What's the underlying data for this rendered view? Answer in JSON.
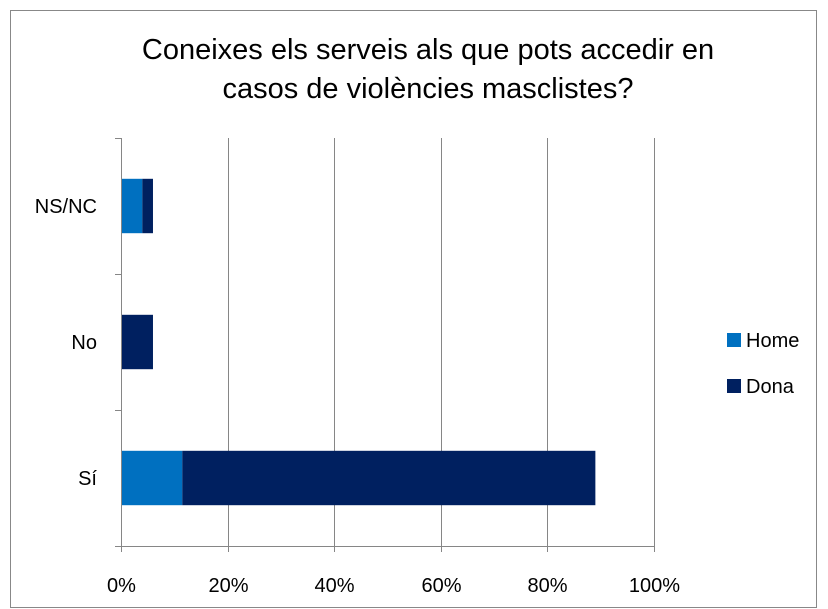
{
  "chart_data": {
    "type": "bar",
    "orientation": "horizontal",
    "stacked": true,
    "title_lines": [
      "Coneixes els serveis als que pots accedir en",
      "casos de violències masclistes?"
    ],
    "categories": [
      "NS/NC",
      "No",
      "Sí"
    ],
    "series": [
      {
        "name": "Home",
        "values": [
          4,
          0,
          11.5
        ],
        "color": "#0070C0"
      },
      {
        "name": "Dona",
        "values": [
          2,
          6,
          77.5
        ],
        "color": "#002060"
      }
    ],
    "xlim": [
      0,
      100
    ],
    "x_ticks": [
      "0%",
      "20%",
      "40%",
      "60%",
      "80%",
      "100%"
    ],
    "x_tick_values": [
      0,
      20,
      40,
      60,
      80,
      100
    ],
    "grid": "vertical",
    "legend_position": "right",
    "xlabel": "",
    "ylabel": ""
  }
}
